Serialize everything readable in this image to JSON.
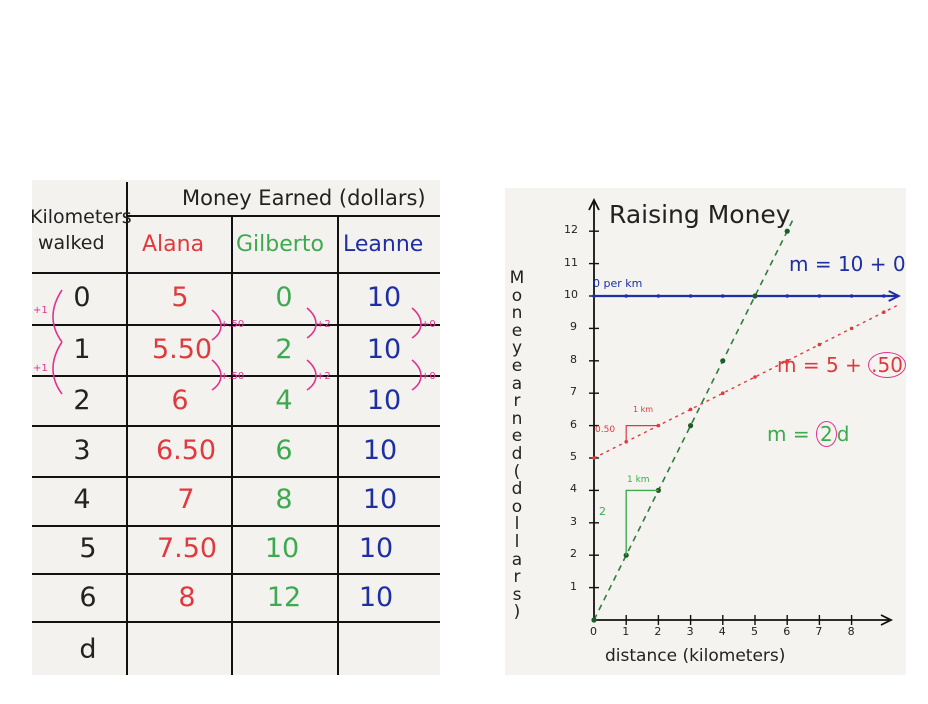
{
  "table": {
    "header_group": "Money Earned (dollars)",
    "col_km_line1": "Kilometers",
    "col_km_line2": "walked",
    "columns": [
      "Alana",
      "Gilberto",
      "Leanne"
    ],
    "rows": [
      {
        "km": "0",
        "alana": "5",
        "gilberto": "0",
        "leanne": "10"
      },
      {
        "km": "1",
        "alana": "5.50",
        "gilberto": "2",
        "leanne": "10"
      },
      {
        "km": "2",
        "alana": "6",
        "gilberto": "4",
        "leanne": "10"
      },
      {
        "km": "3",
        "alana": "6.50",
        "gilberto": "6",
        "leanne": "10"
      },
      {
        "km": "4",
        "alana": "7",
        "gilberto": "8",
        "leanne": "10"
      },
      {
        "km": "5",
        "alana": "7.50",
        "gilberto": "10",
        "leanne": "10"
      },
      {
        "km": "6",
        "alana": "8",
        "gilberto": "12",
        "leanne": "10"
      },
      {
        "km": "d",
        "alana": "",
        "gilberto": "",
        "leanne": ""
      }
    ],
    "annotations": {
      "alana_step": "+.50",
      "gilberto_step": "+2",
      "leanne_step": "+0",
      "km_step": "+1"
    },
    "colors": {
      "alana": "#e03a3e",
      "gilberto": "#3daa4f",
      "leanne": "#1d2fa3",
      "annotation": "#e0338f"
    }
  },
  "graph": {
    "title": "Raising Money",
    "ylabel_letters": [
      "M",
      "o",
      "n",
      "e",
      "y",
      "e",
      "a",
      "r",
      "n",
      "e",
      "d",
      "(",
      "d",
      "o",
      "l",
      "l",
      "a",
      "r",
      "s",
      ")"
    ],
    "xlabel": "distance (kilometers)",
    "x_ticks": [
      "0",
      "1",
      "2",
      "3",
      "4",
      "5",
      "6",
      "7",
      "8"
    ],
    "y_ticks": [
      "1",
      "2",
      "3",
      "4",
      "5",
      "6",
      "7",
      "8",
      "9",
      "10",
      "11",
      "12"
    ],
    "eq_leanne": "m = 10 + 0d",
    "eq_alana_prefix": "m = 5 + ",
    "eq_alana_rate": ".50",
    "eq_alana_suffix": "d",
    "eq_gilberto_prefix": "m = ",
    "eq_gilberto_rate": "2",
    "eq_gilberto_suffix": "d",
    "leanne_note": "0 per km",
    "alana_note_rise": "0.50",
    "alana_note_run": "1 km",
    "gilberto_note_rise": "2",
    "gilberto_note_run": "1 km"
  },
  "chart_data": {
    "type": "line",
    "title": "Raising Money",
    "xlabel": "distance (kilometers)",
    "ylabel": "Money earned (dollars)",
    "xlim": [
      0,
      9
    ],
    "ylim": [
      0,
      12.5
    ],
    "x": [
      0,
      1,
      2,
      3,
      4,
      5,
      6,
      7,
      8,
      9
    ],
    "series": [
      {
        "name": "m = 10 + 0d",
        "color": "#1d2fa3",
        "values": [
          10,
          10,
          10,
          10,
          10,
          10,
          10,
          10,
          10,
          10
        ]
      },
      {
        "name": "m = 5 + .50d",
        "color": "#e03a3e",
        "values": [
          5,
          5.5,
          6,
          6.5,
          7,
          7.5,
          8,
          8.5,
          9,
          9.5
        ]
      },
      {
        "name": "m = 2d",
        "color": "#2f7d3c",
        "values": [
          0,
          2,
          4,
          6,
          8,
          10,
          12,
          null,
          null,
          null
        ]
      }
    ]
  }
}
